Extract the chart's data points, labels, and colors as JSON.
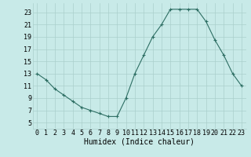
{
  "x": [
    0,
    1,
    2,
    3,
    4,
    5,
    6,
    7,
    8,
    9,
    10,
    11,
    12,
    13,
    14,
    15,
    16,
    17,
    18,
    19,
    20,
    21,
    22,
    23
  ],
  "y": [
    13,
    12,
    10.5,
    9.5,
    8.5,
    7.5,
    7,
    6.5,
    6,
    6,
    9,
    13,
    16,
    19,
    21,
    23.5,
    23.5,
    23.5,
    23.5,
    21.5,
    18.5,
    16,
    13,
    11
  ],
  "line_color": "#2d6e63",
  "marker": "+",
  "marker_size": 3,
  "marker_linewidth": 0.8,
  "bg_color": "#c8eae8",
  "grid_color": "#aacfcc",
  "xlabel": "Humidex (Indice chaleur)",
  "xlabel_fontsize": 7,
  "tick_fontsize": 6,
  "ylim": [
    4,
    24.5
  ],
  "xlim": [
    -0.5,
    23.5
  ],
  "yticks": [
    5,
    7,
    9,
    11,
    13,
    15,
    17,
    19,
    21,
    23
  ],
  "xticks": [
    0,
    1,
    2,
    3,
    4,
    5,
    6,
    7,
    8,
    9,
    10,
    11,
    12,
    13,
    14,
    15,
    16,
    17,
    18,
    19,
    20,
    21,
    22,
    23
  ],
  "linewidth": 0.8
}
